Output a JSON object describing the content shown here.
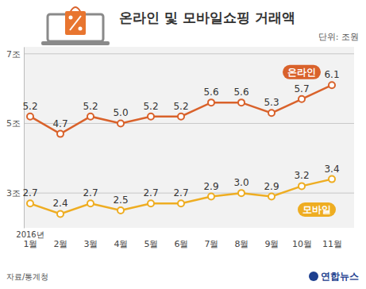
{
  "chart_data": {
    "type": "line",
    "title": "온라인 및 모바일쇼핑 거래액",
    "subtitle": "단위: 조원",
    "categories": [
      "1월",
      "2월",
      "3월",
      "4월",
      "5월",
      "6월",
      "7월",
      "8월",
      "9월",
      "10월",
      "11월"
    ],
    "annotations": [
      "2016년"
    ],
    "series": [
      {
        "name": "온라인",
        "color": "#d9622b",
        "values": [
          5.2,
          4.7,
          5.2,
          5.0,
          5.2,
          5.2,
          5.6,
          5.6,
          5.3,
          5.7,
          6.1
        ],
        "value_labels": [
          "5.2",
          "4.7",
          "5.2",
          "5.0",
          "5.2",
          "5.2",
          "5.6",
          "5.6",
          "5.3",
          "5.7",
          "6.1"
        ]
      },
      {
        "name": "모바일",
        "color": "#eead22",
        "values": [
          2.7,
          2.4,
          2.7,
          2.5,
          2.7,
          2.7,
          2.9,
          3.0,
          2.9,
          3.2,
          3.4
        ],
        "value_labels": [
          "2.7",
          "2.4",
          "2.7",
          "2.5",
          "2.7",
          "2.7",
          "2.9",
          "3.0",
          "2.9",
          "3.2",
          "3.4"
        ]
      }
    ],
    "ylim": [
      2,
      7.2
    ],
    "yticks": [
      {
        "value": 3,
        "label": "3조"
      },
      {
        "value": 5,
        "label": "5조"
      },
      {
        "value": 7,
        "label": "7조"
      }
    ],
    "grid": true,
    "data_labels": true,
    "marker": "circle",
    "source": "자료/통계청",
    "credit": "연합뉴스"
  }
}
